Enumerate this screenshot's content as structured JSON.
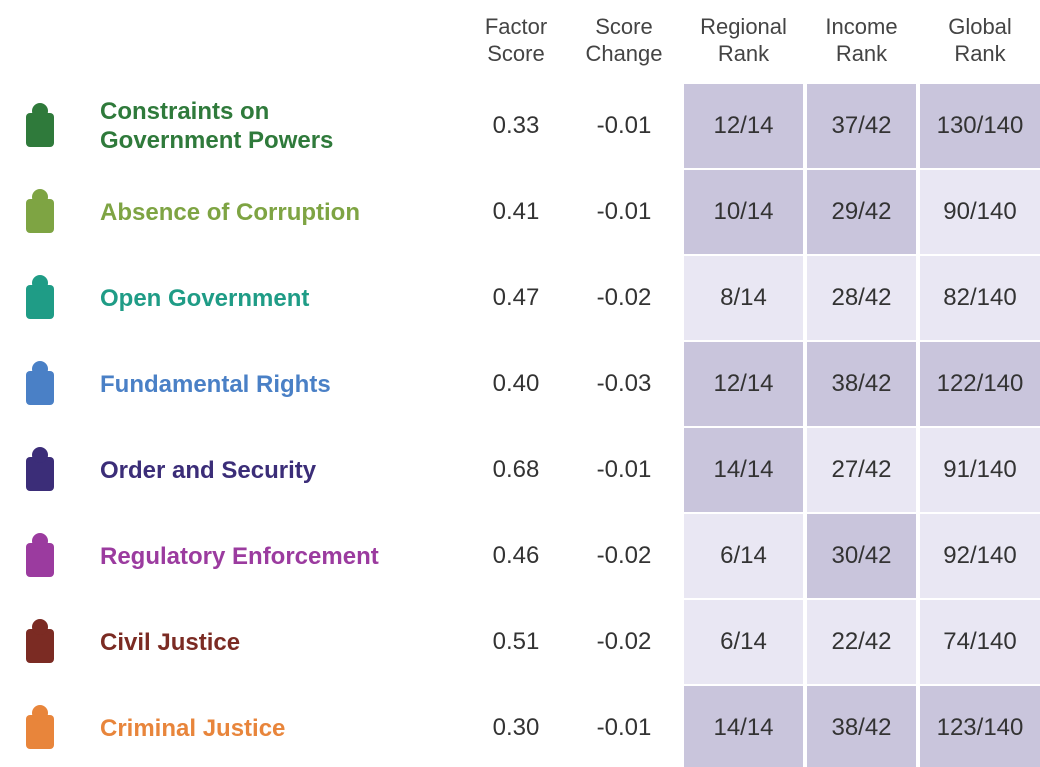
{
  "table": {
    "header": [
      "Factor Score",
      "Score Change",
      "Regional Rank",
      "Income Rank",
      "Global Rank"
    ],
    "shade_colors": {
      "dark": "#c9c5dc",
      "light": "#e9e7f3"
    },
    "rows": [
      {
        "name": "Constraints on Government Powers",
        "color": "#2f7a3b",
        "cells": [
          "0.33",
          "-0.01",
          "12/14",
          "37/42",
          "130/140"
        ],
        "shades": [
          "dark",
          "dark",
          "dark"
        ]
      },
      {
        "name": "Absence of Corruption",
        "color": "#7ea443",
        "cells": [
          "0.41",
          "-0.01",
          "10/14",
          "29/42",
          "90/140"
        ],
        "shades": [
          "dark",
          "dark",
          "light"
        ]
      },
      {
        "name": "Open Government",
        "color": "#1f9c86",
        "cells": [
          "0.47",
          "-0.02",
          "8/14",
          "28/42",
          "82/140"
        ],
        "shades": [
          "light",
          "light",
          "light"
        ]
      },
      {
        "name": "Fundamental Rights",
        "color": "#4a80c6",
        "cells": [
          "0.40",
          "-0.03",
          "12/14",
          "38/42",
          "122/140"
        ],
        "shades": [
          "dark",
          "dark",
          "dark"
        ]
      },
      {
        "name": "Order and Security",
        "color": "#3b2d78",
        "cells": [
          "0.68",
          "-0.01",
          "14/14",
          "27/42",
          "91/140"
        ],
        "shades": [
          "dark",
          "light",
          "light"
        ]
      },
      {
        "name": "Regulatory Enforcement",
        "color": "#9b3b9f",
        "cells": [
          "0.46",
          "-0.02",
          "6/14",
          "30/42",
          "92/140"
        ],
        "shades": [
          "light",
          "dark",
          "light"
        ]
      },
      {
        "name": "Civil Justice",
        "color": "#7b2b23",
        "cells": [
          "0.51",
          "-0.02",
          "6/14",
          "22/42",
          "74/140"
        ],
        "shades": [
          "light",
          "light",
          "light"
        ]
      },
      {
        "name": "Criminal Justice",
        "color": "#e8853b",
        "cells": [
          "0.30",
          "-0.01",
          "14/14",
          "38/42",
          "123/140"
        ],
        "shades": [
          "dark",
          "dark",
          "dark"
        ]
      }
    ]
  }
}
